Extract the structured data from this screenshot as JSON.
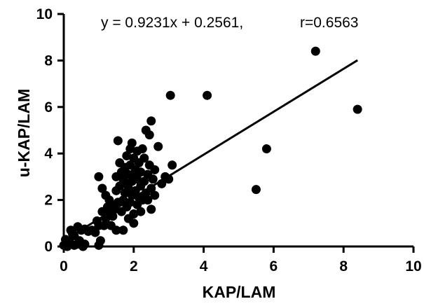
{
  "chart_data": {
    "type": "scatter",
    "title": "",
    "equation": "y = 0.9231x + 0.2561,",
    "correlation": "r=0.6563",
    "xlabel": "KAP/LAM",
    "ylabel": "u-KAP/LAM",
    "xlim": [
      0,
      10
    ],
    "ylim": [
      0,
      10
    ],
    "xticks": [
      0,
      2,
      4,
      6,
      8,
      10
    ],
    "yticks": [
      0,
      2,
      4,
      6,
      8,
      10
    ],
    "grid": false,
    "marker_color": "#000000",
    "line_color": "#000000",
    "regression": {
      "slope": 0.9231,
      "intercept": 0.2561,
      "x_range": [
        0,
        8.4
      ]
    },
    "series": [
      {
        "points": [
          [
            0.0,
            0.05
          ],
          [
            0.1,
            0.0
          ],
          [
            0.2,
            0.1
          ],
          [
            0.3,
            0.05
          ],
          [
            0.05,
            0.3
          ],
          [
            0.15,
            0.2
          ],
          [
            0.4,
            0.1
          ],
          [
            0.45,
            0.25
          ],
          [
            0.6,
            0.1
          ],
          [
            0.55,
            0.0
          ],
          [
            0.2,
            0.7
          ],
          [
            0.25,
            0.55
          ],
          [
            0.3,
            0.45
          ],
          [
            0.4,
            0.85
          ],
          [
            0.5,
            0.7
          ],
          [
            0.6,
            0.75
          ],
          [
            0.7,
            0.65
          ],
          [
            0.8,
            0.7
          ],
          [
            0.9,
            0.6
          ],
          [
            0.95,
            1.1
          ],
          [
            1.0,
            0.9
          ],
          [
            1.05,
            0.25
          ],
          [
            1.0,
            0.05
          ],
          [
            1.1,
            1.5
          ],
          [
            1.2,
            1.2
          ],
          [
            1.15,
            0.9
          ],
          [
            1.25,
            1.7
          ],
          [
            1.3,
            1.4
          ],
          [
            1.0,
            3.0
          ],
          [
            1.1,
            2.5
          ],
          [
            1.2,
            2.2
          ],
          [
            1.3,
            2.0
          ],
          [
            1.35,
            1.8
          ],
          [
            1.4,
            1.3
          ],
          [
            1.45,
            1.6
          ],
          [
            1.5,
            0.7
          ],
          [
            1.35,
            0.9
          ],
          [
            1.5,
            2.4
          ],
          [
            1.5,
            3.0
          ],
          [
            1.55,
            1.9
          ],
          [
            1.55,
            4.55
          ],
          [
            1.6,
            3.6
          ],
          [
            1.6,
            2.6
          ],
          [
            1.65,
            1.5
          ],
          [
            1.65,
            3.2
          ],
          [
            1.7,
            2.0
          ],
          [
            1.7,
            2.9
          ],
          [
            1.7,
            0.7
          ],
          [
            1.75,
            2.3
          ],
          [
            1.75,
            3.4
          ],
          [
            1.8,
            1.7
          ],
          [
            1.8,
            2.7
          ],
          [
            1.8,
            3.9
          ],
          [
            1.85,
            1.2
          ],
          [
            1.85,
            2.5
          ],
          [
            1.85,
            3.1
          ],
          [
            1.9,
            1.9
          ],
          [
            1.9,
            4.2
          ],
          [
            1.9,
            3.5
          ],
          [
            1.95,
            2.2
          ],
          [
            1.95,
            2.8
          ],
          [
            1.95,
            4.45
          ],
          [
            2.0,
            1.4
          ],
          [
            2.0,
            3.0
          ],
          [
            2.0,
            3.8
          ],
          [
            2.0,
            1.0
          ],
          [
            2.05,
            2.4
          ],
          [
            2.05,
            3.3
          ],
          [
            2.1,
            1.8
          ],
          [
            2.1,
            2.9
          ],
          [
            2.1,
            4.1
          ],
          [
            2.15,
            2.1
          ],
          [
            2.15,
            3.6
          ],
          [
            2.2,
            2.6
          ],
          [
            2.2,
            3.2
          ],
          [
            2.2,
            1.5
          ],
          [
            2.25,
            2.0
          ],
          [
            2.25,
            4.2
          ],
          [
            2.3,
            2.8
          ],
          [
            2.3,
            3.8
          ],
          [
            2.35,
            2.3
          ],
          [
            2.35,
            5.0
          ],
          [
            2.4,
            3.1
          ],
          [
            2.4,
            2.0
          ],
          [
            2.45,
            4.8
          ],
          [
            2.45,
            3.5
          ],
          [
            2.5,
            2.5
          ],
          [
            2.5,
            5.4
          ],
          [
            2.5,
            1.6
          ],
          [
            2.55,
            2.9
          ],
          [
            2.6,
            3.3
          ],
          [
            2.6,
            2.2
          ],
          [
            2.7,
            4.3
          ],
          [
            2.8,
            2.7
          ],
          [
            2.9,
            3.0
          ],
          [
            3.0,
            2.9
          ],
          [
            3.1,
            3.5
          ],
          [
            3.05,
            6.5
          ],
          [
            4.1,
            6.5
          ],
          [
            5.5,
            2.45
          ],
          [
            5.8,
            4.2
          ],
          [
            7.2,
            8.4
          ],
          [
            8.4,
            5.9
          ]
        ]
      }
    ]
  }
}
